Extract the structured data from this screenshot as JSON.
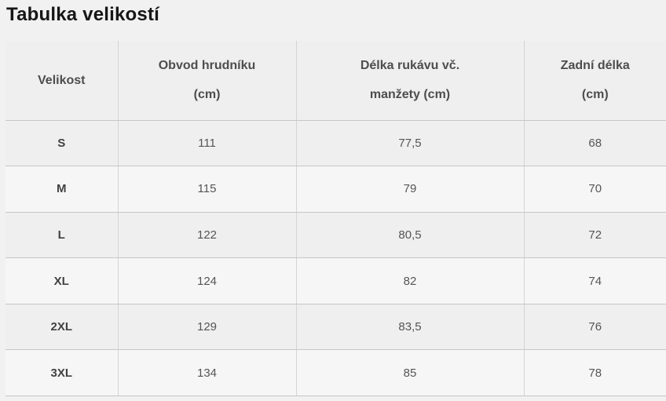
{
  "page": {
    "title": "Tabulka velikostí"
  },
  "colors": {
    "page_bg": "#f1f1f1",
    "header_row_bg": "#efefef",
    "odd_row_bg": "#efefef",
    "even_row_bg": "#f6f6f6",
    "border_horizontal": "#c6c6c6",
    "border_vertical": "#d4d4d4",
    "title_text": "#161616",
    "header_text": "#4d4d4d",
    "size_label_text": "#414141",
    "value_text": "#555555"
  },
  "table": {
    "header": [
      {
        "line1": "Velikost"
      },
      {
        "line1": "Obvod hrudníku",
        "line2": "(cm)"
      },
      {
        "line1": "Délka rukávu vč.",
        "line2": "manžety (cm)"
      },
      {
        "line1": "Zadní délka",
        "line2": "(cm)"
      }
    ],
    "rows": [
      {
        "size": "S",
        "chest": "111",
        "sleeve": "77,5",
        "back": "68"
      },
      {
        "size": "M",
        "chest": "115",
        "sleeve": "79",
        "back": "70"
      },
      {
        "size": "L",
        "chest": "122",
        "sleeve": "80,5",
        "back": "72"
      },
      {
        "size": "XL",
        "chest": "124",
        "sleeve": "82",
        "back": "74"
      },
      {
        "size": "2XL",
        "chest": "129",
        "sleeve": "83,5",
        "back": "76"
      },
      {
        "size": "3XL",
        "chest": "134",
        "sleeve": "85",
        "back": "78"
      }
    ]
  }
}
